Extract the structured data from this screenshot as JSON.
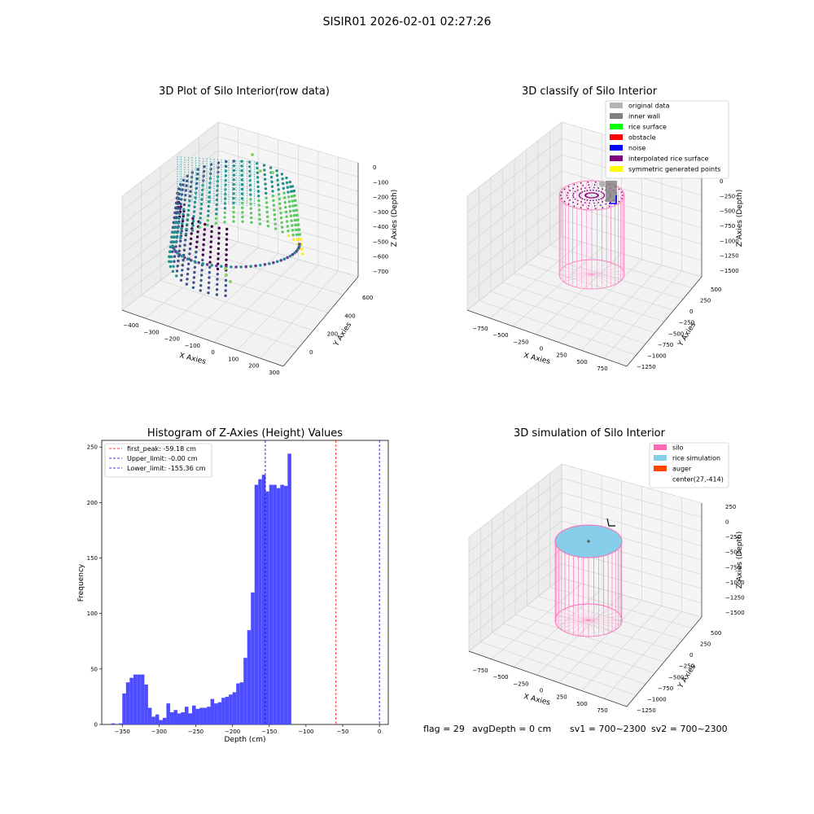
{
  "figure": {
    "suptitle": "SISIR01 2026-02-01 02:27:26"
  },
  "panel_raw": {
    "title": "3D Plot of Silo Interior(row data)",
    "xlabel": "X Axies",
    "ylabel": "Y Axies",
    "zlabel": "Z Axies (Depth)",
    "xticks": [
      "−400",
      "−300",
      "−200",
      "−100",
      "0",
      "100",
      "200",
      "300"
    ],
    "yticks": [
      "0",
      "200",
      "400",
      "600"
    ],
    "zticks": [
      "0",
      "−100",
      "−200",
      "−300",
      "−400",
      "−500",
      "−600",
      "−700"
    ],
    "colormap": [
      "#440154",
      "#3b528b",
      "#21908d",
      "#5dc962",
      "#fde725"
    ]
  },
  "panel_classify": {
    "title": "3D classify of Silo Interior",
    "xlabel": "X Axies",
    "ylabel": "Y Axies",
    "zlabel": "Z Axies (Depth)",
    "xticks": [
      "−750",
      "−500",
      "−250",
      "0",
      "250",
      "500",
      "750"
    ],
    "yticks": [
      "500",
      "250",
      "0",
      "−250",
      "−500",
      "−750",
      "−1000",
      "−1250"
    ],
    "zticks": [
      "0",
      "−250",
      "−500",
      "−750",
      "−1000",
      "−1250",
      "−1500"
    ],
    "legend": [
      {
        "label": "original data",
        "color": "#b3b3b3"
      },
      {
        "label": "inner wall",
        "color": "#808080"
      },
      {
        "label": "rice surface",
        "color": "#00ff00"
      },
      {
        "label": "obstacle",
        "color": "#ff0000"
      },
      {
        "label": "noise",
        "color": "#0000ff"
      },
      {
        "label": "interpolated rice surface",
        "color": "#800080"
      },
      {
        "label": "symmetric generated points",
        "color": "#ffff00"
      }
    ]
  },
  "panel_sim": {
    "title": "3D simulation of Silo Interior",
    "xlabel": "X Axies",
    "ylabel": "Y Axies",
    "zlabel": "Z Axies (Depth)",
    "xticks": [
      "−750",
      "−500",
      "−250",
      "0",
      "250",
      "500",
      "750"
    ],
    "yticks": [
      "500",
      "250",
      "0",
      "−250",
      "−500",
      "−750",
      "−1000",
      "−1250"
    ],
    "zticks": [
      "250",
      "0",
      "−250",
      "−500",
      "−750",
      "−1000",
      "−1250",
      "−1500"
    ],
    "legend": [
      {
        "label": "silo",
        "color": "#ff69b4"
      },
      {
        "label": "rice simulation",
        "color": "#87ceeb"
      },
      {
        "label": "auger",
        "color": "#ff4500"
      },
      {
        "label": "center(27,-414)",
        "color": ""
      }
    ],
    "silo_color": "#ff69b4",
    "rice_color": "#87ceeb"
  },
  "status": {
    "flag": "flag = 29",
    "avgdepth": "avgDepth = 0 cm",
    "sv1": "sv1 = 700~2300",
    "sv2": "sv2 = 700~2300"
  },
  "chart_data": {
    "type": "bar",
    "title": "Histogram of Z-Axies (Height) Values",
    "xlabel": "Depth (cm)",
    "ylabel": "Frequency",
    "xlim": [
      -378,
      12
    ],
    "ylim": [
      0,
      256
    ],
    "xticks": [
      -350,
      -300,
      -250,
      -200,
      -150,
      -100,
      -50,
      0
    ],
    "yticks": [
      0,
      50,
      100,
      150,
      200,
      250
    ],
    "bar_color": "#4d4dff",
    "bins": {
      "start": -365,
      "width": 5,
      "counts": [
        1,
        0,
        1,
        28,
        38,
        42,
        45,
        45,
        45,
        36,
        15,
        7,
        9,
        4,
        6,
        19,
        11,
        13,
        10,
        11,
        16,
        10,
        17,
        14,
        15,
        15,
        16,
        23,
        19,
        20,
        24,
        25,
        27,
        29,
        37,
        38,
        60,
        85,
        119,
        216,
        221,
        225,
        210,
        216,
        216,
        213,
        216,
        215,
        244
      ]
    },
    "vlines": [
      {
        "x": -59.18,
        "label": "first_peak: -59.18 cm",
        "color": "#ff0000"
      },
      {
        "x": -0.0,
        "label": "Upper_limit: -0.00 cm",
        "color": "#0000cc"
      },
      {
        "x": -155.36,
        "label": "Lower_limit: -155.36 cm",
        "color": "#0000cc"
      }
    ],
    "legend_position": "upper-left"
  }
}
